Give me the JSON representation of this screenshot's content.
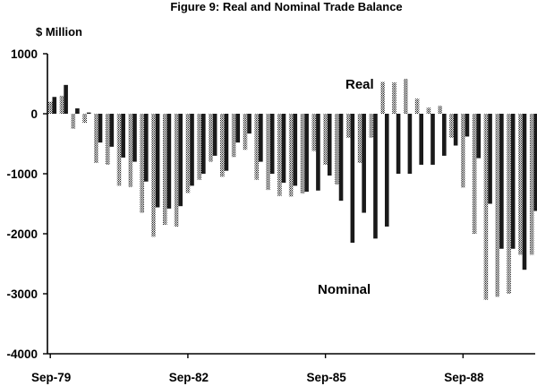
{
  "chart_data": {
    "type": "bar",
    "title": "Figure 9: Real and Nominal Trade Balance",
    "ylabel": "$ Million",
    "xlabel": "",
    "ylim": [
      -4000,
      1000
    ],
    "yticks": [
      1000,
      0,
      -1000,
      -2000,
      -3000,
      -4000
    ],
    "ytick_labels": [
      "1000",
      "0",
      "-1000",
      "-2000",
      "-3000",
      "-4000"
    ],
    "xtick_labels": [
      "Sep-79",
      "Sep-82",
      "Sep-85",
      "Sep-88"
    ],
    "xtick_quarter_index": [
      0,
      12,
      24,
      36
    ],
    "grid": false,
    "legend": [],
    "annotations": [
      {
        "text": "Real",
        "series": "Real"
      },
      {
        "text": "Nominal",
        "series": "Nominal"
      }
    ],
    "categories": [
      "Sep-79",
      "Dec-79",
      "Mar-80",
      "Jun-80",
      "Sep-80",
      "Dec-80",
      "Mar-81",
      "Jun-81",
      "Sep-81",
      "Dec-81",
      "Mar-82",
      "Jun-82",
      "Sep-82",
      "Dec-82",
      "Mar-83",
      "Jun-83",
      "Sep-83",
      "Dec-83",
      "Mar-84",
      "Jun-84",
      "Sep-84",
      "Dec-84",
      "Mar-85",
      "Jun-85",
      "Sep-85",
      "Dec-85",
      "Mar-86",
      "Jun-86",
      "Sep-86",
      "Dec-86",
      "Mar-87",
      "Jun-87",
      "Sep-87",
      "Dec-87",
      "Mar-88",
      "Jun-88",
      "Sep-88",
      "Dec-88",
      "Mar-89",
      "Jun-89",
      "Sep-89",
      "Dec-89",
      "Mar-90"
    ],
    "series": [
      {
        "name": "Real",
        "pattern": "dotted",
        "values": [
          200,
          300,
          -250,
          -150,
          -820,
          -850,
          -1200,
          -1220,
          -1650,
          -2050,
          -1850,
          -1880,
          -1320,
          -1100,
          -800,
          -1050,
          -720,
          -600,
          -1100,
          -1270,
          -1370,
          -1380,
          -1330,
          -620,
          -850,
          -1180,
          -400,
          -820,
          -400,
          530,
          520,
          580,
          250,
          100,
          130,
          -400,
          -1230,
          -2000,
          -3100,
          -3050,
          -3000,
          -2350,
          -2350
        ]
      },
      {
        "name": "Nominal",
        "pattern": "solid",
        "values": [
          280,
          480,
          90,
          20,
          -480,
          -550,
          -730,
          -800,
          -1130,
          -1560,
          -1580,
          -1540,
          -1200,
          -1000,
          -700,
          -950,
          -480,
          -330,
          -800,
          -1000,
          -1150,
          -1200,
          -1300,
          -1280,
          -1030,
          -1450,
          -2150,
          -1650,
          -2080,
          -1880,
          -1000,
          -1000,
          -850,
          -850,
          -700,
          -530,
          -380,
          -740,
          -1500,
          -2250,
          -2250,
          -2600,
          -1620
        ]
      }
    ]
  }
}
